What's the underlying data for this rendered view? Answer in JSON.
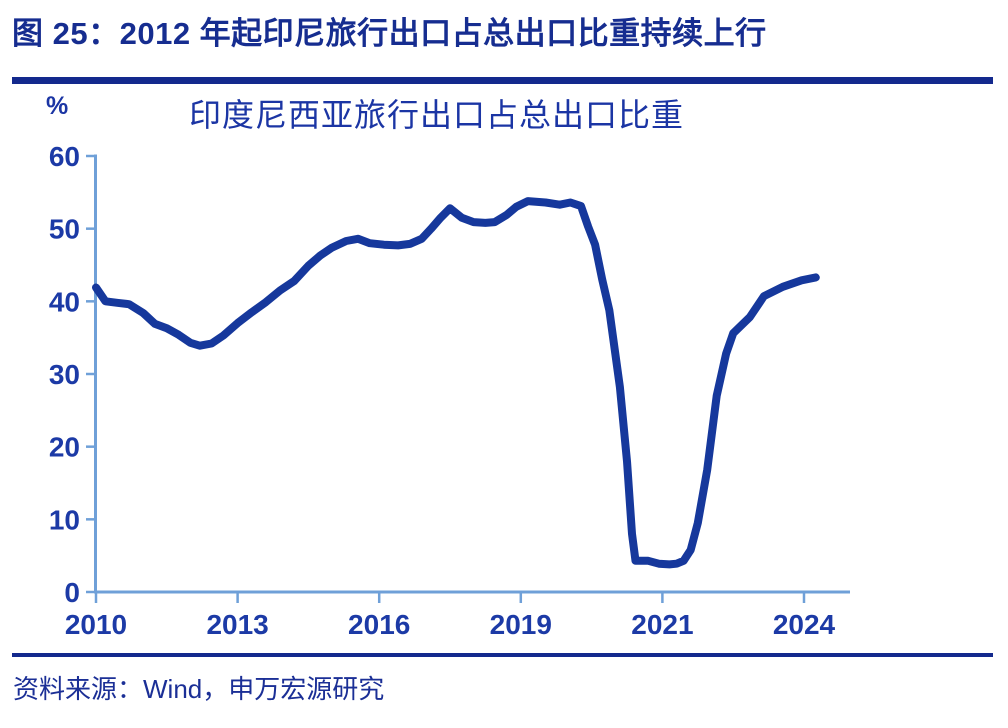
{
  "header": {
    "figure_label": "图 25：2012 年起印尼旅行出口占总出口比重持续上行"
  },
  "source": {
    "text": "资料来源：Wind，申万宏源研究"
  },
  "chart_data": {
    "type": "line",
    "title": "印度尼西亚旅行出口占总出口比重",
    "unit": "%",
    "xlabel": "",
    "ylabel": "%",
    "ylim": [
      0,
      60
    ],
    "y_ticks": [
      0,
      10,
      20,
      30,
      40,
      50,
      60
    ],
    "x_ticks": [
      "2010",
      "2013",
      "2016",
      "2019",
      "2021",
      "2024"
    ],
    "x_tick_years": [
      2010,
      2013,
      2016,
      2019,
      2021,
      2024
    ],
    "grid": false,
    "legend_position": "none",
    "colors": {
      "line": "#16389C",
      "axis": "#6FA0D8",
      "tick_label": "#1C3AA6",
      "header_navy": "#13298D"
    },
    "series": [
      {
        "name": "印度尼西亚旅行出口占总出口比重",
        "points": [
          [
            2010.0,
            41.9
          ],
          [
            2010.2,
            40.0
          ],
          [
            2010.45,
            39.8
          ],
          [
            2010.7,
            39.6
          ],
          [
            2011.0,
            38.4
          ],
          [
            2011.25,
            36.9
          ],
          [
            2011.5,
            36.3
          ],
          [
            2011.75,
            35.4
          ],
          [
            2012.0,
            34.3
          ],
          [
            2012.2,
            33.9
          ],
          [
            2012.45,
            34.2
          ],
          [
            2012.7,
            35.3
          ],
          [
            2013.0,
            37.0
          ],
          [
            2013.3,
            38.5
          ],
          [
            2013.6,
            39.9
          ],
          [
            2013.9,
            41.5
          ],
          [
            2014.2,
            42.8
          ],
          [
            2014.5,
            44.9
          ],
          [
            2014.75,
            46.3
          ],
          [
            2015.0,
            47.4
          ],
          [
            2015.3,
            48.3
          ],
          [
            2015.55,
            48.6
          ],
          [
            2015.8,
            48.0
          ],
          [
            2016.1,
            47.8
          ],
          [
            2016.4,
            47.7
          ],
          [
            2016.65,
            47.9
          ],
          [
            2016.9,
            48.6
          ],
          [
            2017.1,
            50.0
          ],
          [
            2017.3,
            51.5
          ],
          [
            2017.5,
            52.8
          ],
          [
            2017.75,
            51.5
          ],
          [
            2018.0,
            50.9
          ],
          [
            2018.25,
            50.8
          ],
          [
            2018.45,
            50.9
          ],
          [
            2018.7,
            51.9
          ],
          [
            2018.9,
            53.0
          ],
          [
            2019.1,
            53.8
          ],
          [
            2019.35,
            53.6
          ],
          [
            2019.55,
            53.3
          ],
          [
            2019.7,
            53.6
          ],
          [
            2019.85,
            53.1
          ],
          [
            2019.95,
            50.3
          ],
          [
            2020.05,
            47.8
          ],
          [
            2020.15,
            43.0
          ],
          [
            2020.25,
            38.8
          ],
          [
            2020.4,
            28.2
          ],
          [
            2020.5,
            18.0
          ],
          [
            2020.57,
            8.0
          ],
          [
            2020.62,
            4.3
          ],
          [
            2020.8,
            4.3
          ],
          [
            2020.95,
            3.9
          ],
          [
            2021.15,
            3.8
          ],
          [
            2021.3,
            3.9
          ],
          [
            2021.45,
            4.3
          ],
          [
            2021.6,
            5.8
          ],
          [
            2021.75,
            9.5
          ],
          [
            2021.95,
            16.8
          ],
          [
            2022.15,
            27.0
          ],
          [
            2022.35,
            32.8
          ],
          [
            2022.5,
            35.6
          ],
          [
            2022.85,
            37.8
          ],
          [
            2023.15,
            40.7
          ],
          [
            2023.55,
            42.0
          ],
          [
            2023.95,
            42.9
          ],
          [
            2024.25,
            43.3
          ]
        ]
      }
    ]
  }
}
